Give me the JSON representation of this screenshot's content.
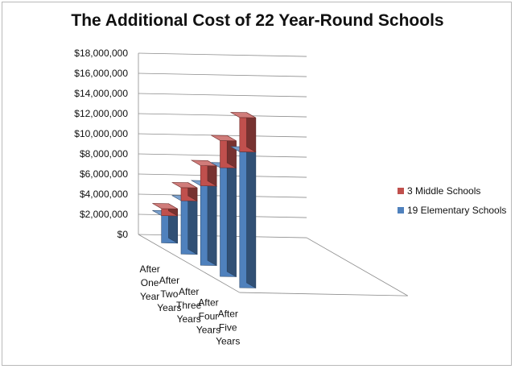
{
  "chart_data": {
    "type": "bar",
    "stacked": true,
    "three_d": true,
    "title": "The Additional Cost of 22 Year-Round Schools",
    "categories": [
      [
        "After",
        "One",
        "Year"
      ],
      [
        "After",
        "Two",
        "Years"
      ],
      [
        "After",
        "Three",
        "Years"
      ],
      [
        "After",
        "Four",
        "Years"
      ],
      [
        "After",
        "Five",
        "Years"
      ]
    ],
    "series": [
      {
        "name": "19 Elementary Schools",
        "color": "#4f81bd",
        "values": [
          2700000,
          5300000,
          7900000,
          10800000,
          13500000
        ]
      },
      {
        "name": "3 Middle Schools",
        "color": "#c0504d",
        "values": [
          700000,
          1300000,
          2000000,
          2700000,
          3400000
        ]
      }
    ],
    "ylim": [
      0,
      18000000
    ],
    "yticks": [
      "$0",
      "$2,000,000",
      "$4,000,000",
      "$6,000,000",
      "$8,000,000",
      "$10,000,000",
      "$12,000,000",
      "$14,000,000",
      "$16,000,000",
      "$18,000,000"
    ],
    "ytick_values": [
      0,
      2000000,
      4000000,
      6000000,
      8000000,
      10000000,
      12000000,
      14000000,
      16000000,
      18000000
    ],
    "grid": true,
    "legend_position": "right",
    "legend_order": [
      "3 Middle Schools",
      "19 Elementary Schools"
    ]
  }
}
